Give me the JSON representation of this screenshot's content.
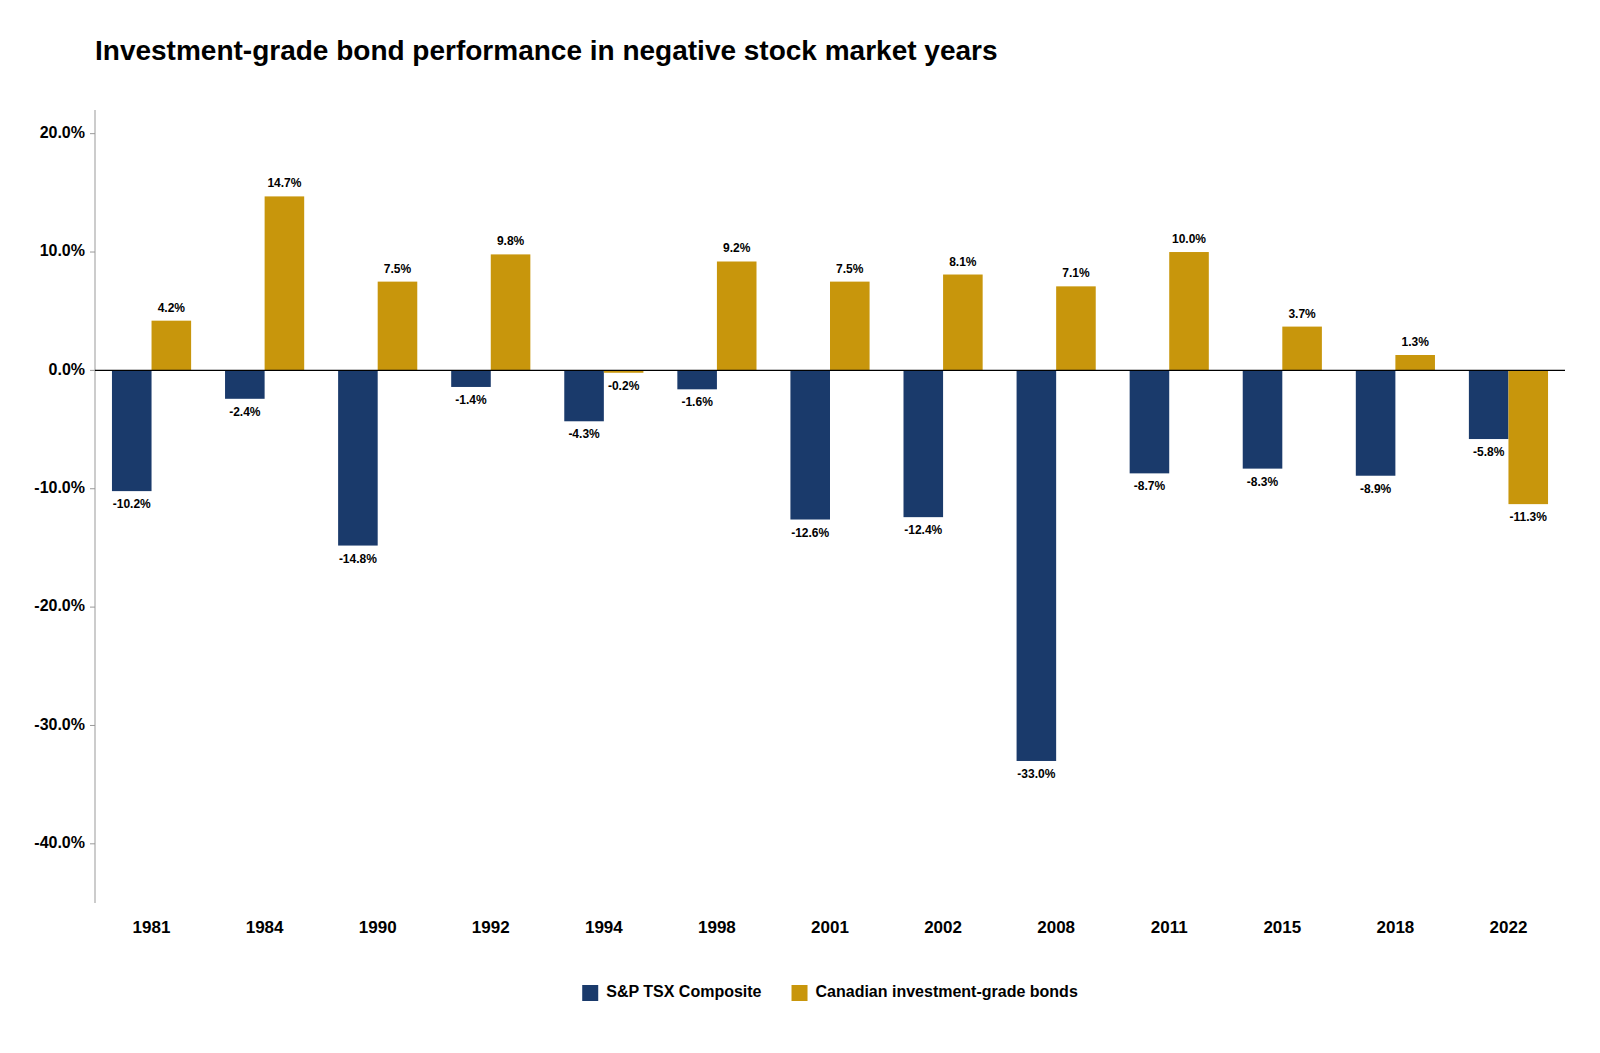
{
  "chart_data": {
    "type": "bar",
    "title": "Investment-grade bond performance in negative stock market years",
    "categories": [
      "1981",
      "1984",
      "1990",
      "1992",
      "1994",
      "1998",
      "2001",
      "2002",
      "2008",
      "2011",
      "2015",
      "2018",
      "2022"
    ],
    "series": [
      {
        "name": "S&P TSX Composite",
        "color": "#1a3a6b",
        "values": [
          -10.2,
          -2.4,
          -14.8,
          -1.4,
          -4.3,
          -1.6,
          -12.6,
          -12.4,
          -33.0,
          -8.7,
          -8.3,
          -8.9,
          -5.8
        ],
        "value_labels": [
          "-10.2%",
          "-2.4%",
          "-14.8%",
          "-1.4%",
          "-4.3%",
          "-1.6%",
          "-12.6%",
          "-12.4%",
          "-33.0%",
          "-8.7%",
          "-8.3%",
          "-8.9%",
          "-5.8%"
        ]
      },
      {
        "name": "Canadian investment-grade bonds",
        "color": "#c8960c",
        "values": [
          4.2,
          14.7,
          7.5,
          9.8,
          -0.2,
          9.2,
          7.5,
          8.1,
          7.1,
          10.0,
          3.7,
          1.3,
          -11.3
        ],
        "value_labels": [
          "4.2%",
          "14.7%",
          "7.5%",
          "9.8%",
          "-0.2%",
          "9.2%",
          "7.5%",
          "8.1%",
          "7.1%",
          "10.0%",
          "3.7%",
          "1.3%",
          "-11.3%"
        ]
      }
    ],
    "ylim": [
      -45,
      22
    ],
    "yticks": [
      {
        "value": 20.0,
        "label": "20.0%"
      },
      {
        "value": 10.0,
        "label": "10.0%"
      },
      {
        "value": 0.0,
        "label": "0.0%"
      },
      {
        "value": -10.0,
        "label": "-10.0%"
      },
      {
        "value": -20.0,
        "label": "-20.0%"
      },
      {
        "value": -30.0,
        "label": "-30.0%"
      },
      {
        "value": -40.0,
        "label": "-40.0%"
      }
    ],
    "grid": false,
    "legend": "bottom",
    "data_labels": true
  }
}
